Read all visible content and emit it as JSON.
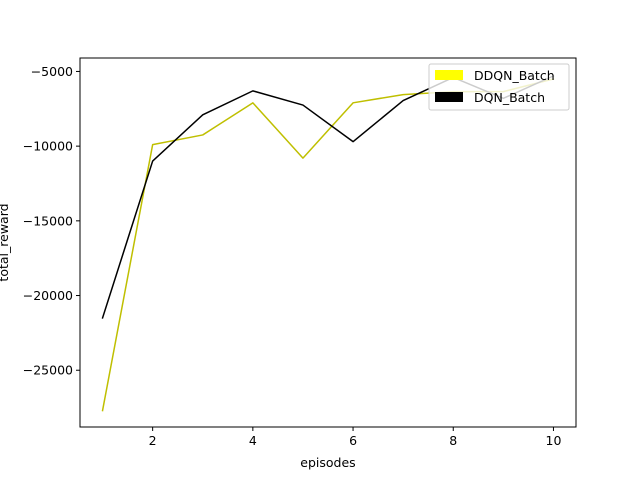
{
  "chart_data": {
    "type": "line",
    "title": "",
    "xlabel": "episodes",
    "ylabel": "total_reward",
    "xlim": [
      0.55,
      10.45
    ],
    "ylim": [
      -28800,
      -4100
    ],
    "x_ticks": [
      2,
      4,
      6,
      8,
      10
    ],
    "y_ticks": [
      -25000,
      -20000,
      -15000,
      -10000,
      -5000
    ],
    "x_tick_labels": [
      "2",
      "4",
      "6",
      "8",
      "10"
    ],
    "y_tick_labels": [
      "−25000",
      "−20000",
      "−15000",
      "−10000",
      "−5000"
    ],
    "grid": false,
    "legend_position": "top-right",
    "x": [
      1,
      2,
      3,
      4,
      5,
      6,
      7,
      8,
      9,
      10
    ],
    "series": [
      {
        "name": "DDQN_Batch",
        "color": "#bfbf00",
        "legend_color": "#ffff00",
        "values": [
          -27700,
          -9900,
          -9250,
          -7100,
          -10800,
          -7100,
          -6550,
          -6350,
          -6350,
          -5500
        ]
      },
      {
        "name": "DQN_Batch",
        "color": "#000000",
        "legend_color": "#000000",
        "values": [
          -21500,
          -11000,
          -7900,
          -6300,
          -7250,
          -9700,
          -6950,
          -5400,
          -6800,
          -5300
        ]
      }
    ]
  }
}
